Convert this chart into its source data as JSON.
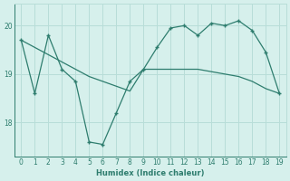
{
  "x": [
    0,
    1,
    2,
    3,
    4,
    5,
    6,
    7,
    8,
    9,
    10,
    11,
    12,
    13,
    14,
    15,
    16,
    17,
    18,
    19
  ],
  "line_jagged": [
    19.7,
    18.6,
    19.8,
    19.1,
    18.85,
    17.6,
    17.55,
    18.2,
    18.85,
    19.1,
    19.55,
    19.95,
    20.0,
    19.8,
    20.05,
    20.0,
    20.1,
    19.9,
    19.45,
    18.6
  ],
  "line_trend": [
    19.7,
    19.55,
    19.4,
    19.25,
    19.1,
    18.95,
    18.85,
    18.75,
    18.65,
    19.1,
    19.1,
    19.1,
    19.1,
    19.1,
    19.05,
    19.0,
    18.95,
    18.85,
    18.7,
    18.6
  ],
  "line_color": "#2e7d6e",
  "bg_color": "#d6f0ec",
  "grid_color": "#b8ddd8",
  "xlabel": "Humidex (Indice chaleur)",
  "ylim": [
    17.3,
    20.45
  ],
  "xlim": [
    -0.5,
    19.5
  ],
  "yticks": [
    18,
    19,
    20
  ],
  "xticks": [
    0,
    1,
    2,
    3,
    4,
    5,
    6,
    7,
    8,
    9,
    10,
    11,
    12,
    13,
    14,
    15,
    16,
    17,
    18,
    19
  ],
  "font_color": "#2e7d6e"
}
